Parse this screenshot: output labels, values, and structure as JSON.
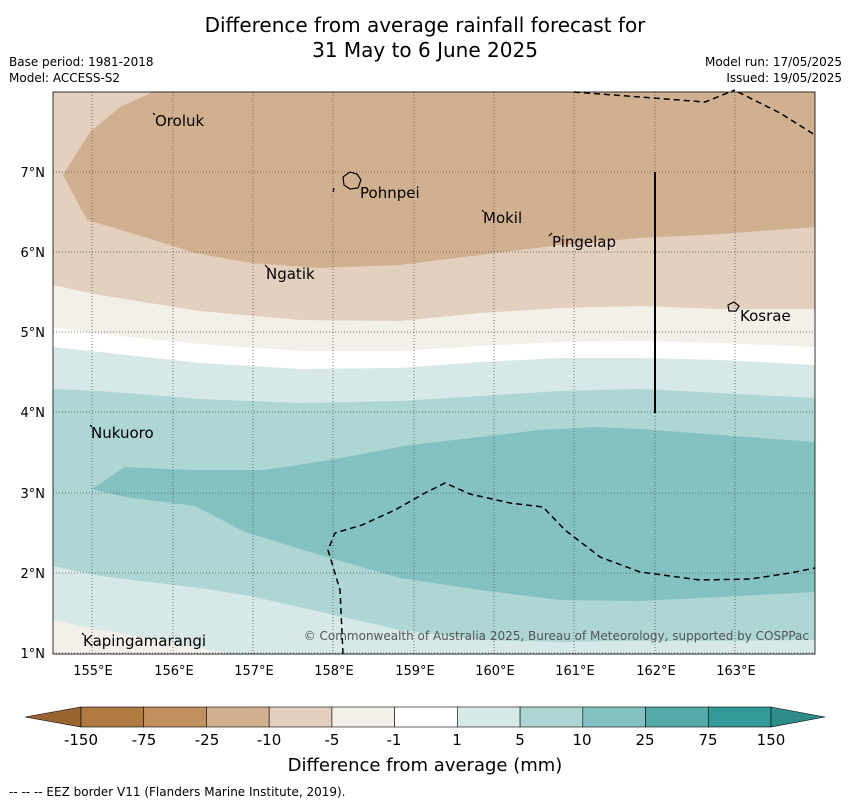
{
  "header": {
    "title_line1": "Difference from average rainfall forecast for",
    "title_line2": "31 May to 6 June 2025",
    "base_period": "Base period: 1981-2018",
    "model": "Model: ACCESS-S2",
    "model_run": "Model run: 17/05/2025",
    "issued": "Issued: 19/05/2025"
  },
  "map": {
    "x_ticks": [
      "155°E",
      "156°E",
      "157°E",
      "158°E",
      "159°E",
      "160°E",
      "161°E",
      "162°E",
      "163°E"
    ],
    "y_ticks": [
      "7°N",
      "6°N",
      "5°N",
      "4°N",
      "3°N",
      "2°N",
      "1°N"
    ],
    "places": [
      {
        "name": "Oroluk",
        "lon": 155.75,
        "lat": 7.6
      },
      {
        "name": "Pohnpei",
        "lon": 158.3,
        "lat": 6.85
      },
      {
        "name": "Mokil",
        "lon": 159.8,
        "lat": 6.4
      },
      {
        "name": "Pingelap",
        "lon": 160.75,
        "lat": 6.15
      },
      {
        "name": "Ngatik",
        "lon": 157.15,
        "lat": 5.85
      },
      {
        "name": "Kosrae",
        "lon": 163.0,
        "lat": 5.25
      },
      {
        "name": "Nukuoro",
        "lon": 154.97,
        "lat": 3.75
      },
      {
        "name": "Kapingamarangi",
        "lon": 154.8,
        "lat": 1.1
      }
    ],
    "copyright": "© Commonwealth of Australia 2025, Bureau of Meteorology, supported by COSPPac"
  },
  "colorbar": {
    "ticks": [
      "-150",
      "-75",
      "-25",
      "-10",
      "-5",
      "-1",
      "1",
      "5",
      "10",
      "25",
      "75",
      "150"
    ],
    "colors": [
      "#b07a41",
      "#c0915f",
      "#d1b08f",
      "#e3d0be",
      "#f3efe9",
      "#ffffff",
      "#d6e9e8",
      "#add6d5",
      "#84c2c1",
      "#53aaa8",
      "#329a98"
    ],
    "extend_low_color": "#9a6530",
    "extend_high_color": "#2e8c8a",
    "label": "Difference from average (mm)"
  },
  "footnote": "--  --  -- EEZ border V11 (Flanders Marine Institute, 2019)."
}
